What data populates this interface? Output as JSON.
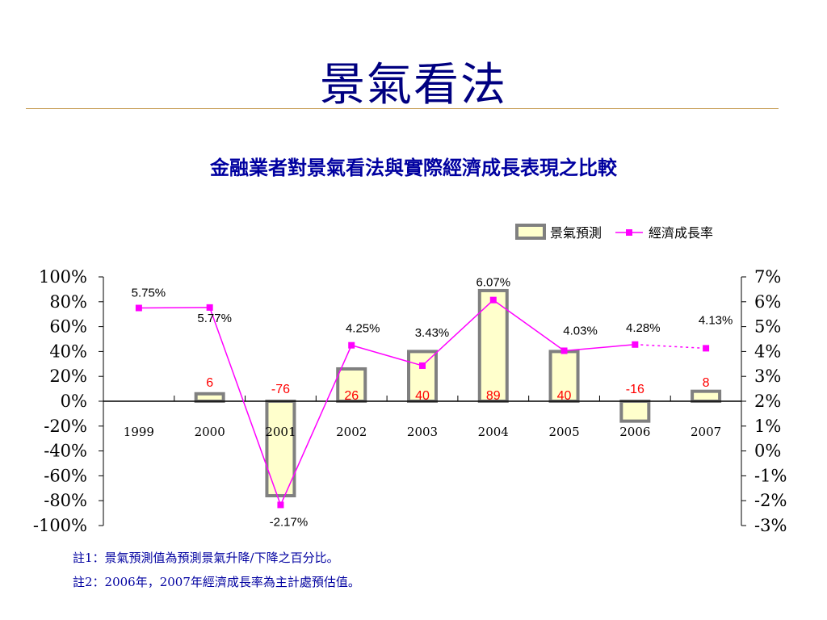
{
  "slide": {
    "title": "景氣看法"
  },
  "notes": [
    "註1：景氣預測值為預測景氣升降/下降之百分比。",
    "註2：2006年，2007年經濟成長率為主計處預估值。"
  ],
  "colors": {
    "title": "#000080",
    "bar_fill": "#ffffcc",
    "bar_stroke": "#808080",
    "line": "#ff00ff",
    "bar_label": "#ff0000",
    "rule": "#c9a15a"
  },
  "chart_data": {
    "type": "bar",
    "title": "金融業者對景氣看法與實際經濟成長表現之比較",
    "categories": [
      "1999",
      "2000",
      "2001",
      "2002",
      "2003",
      "2004",
      "2005",
      "2006",
      "2007"
    ],
    "legend_position": "top-right",
    "grid": false,
    "series": [
      {
        "name": "景氣預測",
        "kind": "bar",
        "axis": "left",
        "values": [
          null,
          6,
          -76,
          26,
          40,
          89,
          40,
          -16,
          8
        ],
        "labels": [
          "",
          "6",
          "-76",
          "26",
          "40",
          "89",
          "40",
          "-16",
          "8"
        ]
      },
      {
        "name": "經濟成長率",
        "kind": "line",
        "axis": "right",
        "values": [
          5.75,
          5.77,
          -2.17,
          4.25,
          3.43,
          6.07,
          4.03,
          4.28,
          4.13
        ],
        "labels": [
          "5.75%",
          "5.77%",
          "-2.17%",
          "4.25%",
          "3.43%",
          "6.07%",
          "4.03%",
          "4.28%",
          "4.13%"
        ],
        "dashed_last_segment": true
      }
    ],
    "y_left": {
      "range": [
        -100,
        100
      ],
      "ticks": [
        "100%",
        "80%",
        "60%",
        "40%",
        "20%",
        "0%",
        "-20%",
        "-40%",
        "-60%",
        "-80%",
        "-100%"
      ]
    },
    "y_right": {
      "range": [
        -3,
        7
      ],
      "ticks": [
        "7%",
        "6%",
        "5%",
        "4%",
        "3%",
        "2%",
        "1%",
        "0%",
        "-1%",
        "-2%",
        "-3%"
      ]
    }
  }
}
